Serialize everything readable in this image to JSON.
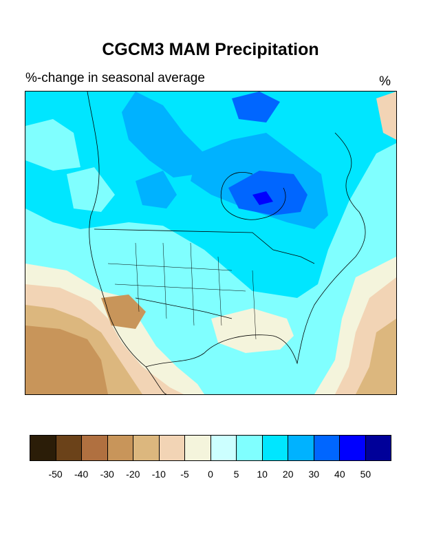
{
  "title": "CGCM3 MAM Precipitation",
  "subtitle": "%-change in seasonal average",
  "units": "%",
  "colorbar": {
    "colors": [
      "#2b1d08",
      "#6b4219",
      "#b07040",
      "#c8955a",
      "#dcb77e",
      "#f2d4b5",
      "#f4f4dc",
      "#ccffff",
      "#80ffff",
      "#00e6ff",
      "#00b2ff",
      "#0066ff",
      "#0000ff",
      "#000099"
    ],
    "labels": [
      "-50",
      "-40",
      "-30",
      "-20",
      "-10",
      "-5",
      "0",
      "5",
      "10",
      "20",
      "30",
      "40",
      "50"
    ]
  }
}
